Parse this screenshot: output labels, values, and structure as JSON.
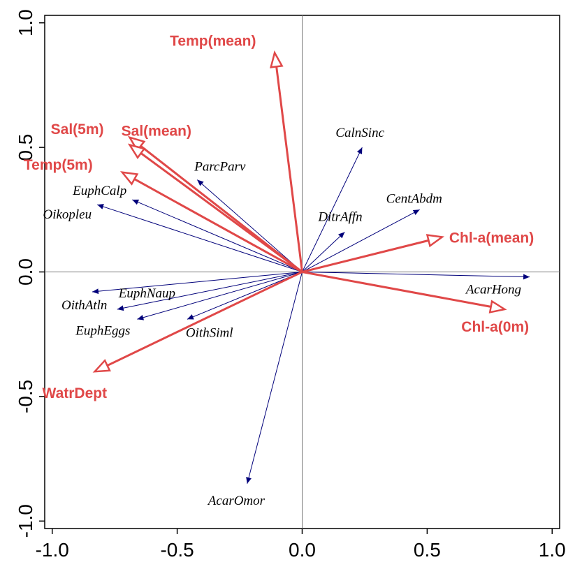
{
  "chart_data": {
    "type": "biplot",
    "title": "",
    "xlabel": "",
    "ylabel": "",
    "xlim": [
      -1.03,
      1.03
    ],
    "ylim": [
      -1.03,
      1.03
    ],
    "x_ticks": [
      -1.0,
      -0.5,
      0.0,
      0.5,
      1.0
    ],
    "y_ticks": [
      -1.0,
      -0.5,
      0.0,
      0.5,
      1.0
    ],
    "x_tick_labels": [
      "-1.0",
      "-0.5",
      "0.0",
      "0.5",
      "1.0"
    ],
    "y_tick_labels": [
      "-1.0",
      "-0.5",
      "0.0",
      "0.5",
      "1.0"
    ],
    "colors": {
      "species": "#00007a",
      "environment": "#e04848",
      "axis": "#000000",
      "zero_lines": "#666666"
    },
    "species": [
      {
        "name": "CalnSinc",
        "x": 0.24,
        "y": 0.5
      },
      {
        "name": "CentAbdm",
        "x": 0.47,
        "y": 0.25
      },
      {
        "name": "DitrAffn",
        "x": 0.17,
        "y": 0.16
      },
      {
        "name": "AcarHong",
        "x": 0.91,
        "y": -0.02
      },
      {
        "name": "ParcParv",
        "x": -0.42,
        "y": 0.37
      },
      {
        "name": "EuphCalp",
        "x": -0.68,
        "y": 0.29
      },
      {
        "name": "Oikopleu",
        "x": -0.82,
        "y": 0.27
      },
      {
        "name": "OithAtln",
        "x": -0.84,
        "y": -0.08
      },
      {
        "name": "EuphNaup",
        "x": -0.74,
        "y": -0.15
      },
      {
        "name": "EuphEggs",
        "x": -0.66,
        "y": -0.19
      },
      {
        "name": "OithSiml",
        "x": -0.46,
        "y": -0.19
      },
      {
        "name": "AcarOmor",
        "x": -0.22,
        "y": -0.85
      }
    ],
    "environment": [
      {
        "name": "Temp(mean)",
        "x": -0.11,
        "y": 0.88
      },
      {
        "name": "Sal(5m)",
        "x": -0.69,
        "y": 0.54
      },
      {
        "name": "Sal(mean)",
        "x": -0.69,
        "y": 0.51
      },
      {
        "name": "Temp(5m)",
        "x": -0.72,
        "y": 0.4
      },
      {
        "name": "Chl-a(mean)",
        "x": 0.56,
        "y": 0.14
      },
      {
        "name": "Chl-a(0m)",
        "x": 0.81,
        "y": -0.15
      },
      {
        "name": "WatrDept",
        "x": -0.83,
        "y": -0.4
      }
    ]
  }
}
